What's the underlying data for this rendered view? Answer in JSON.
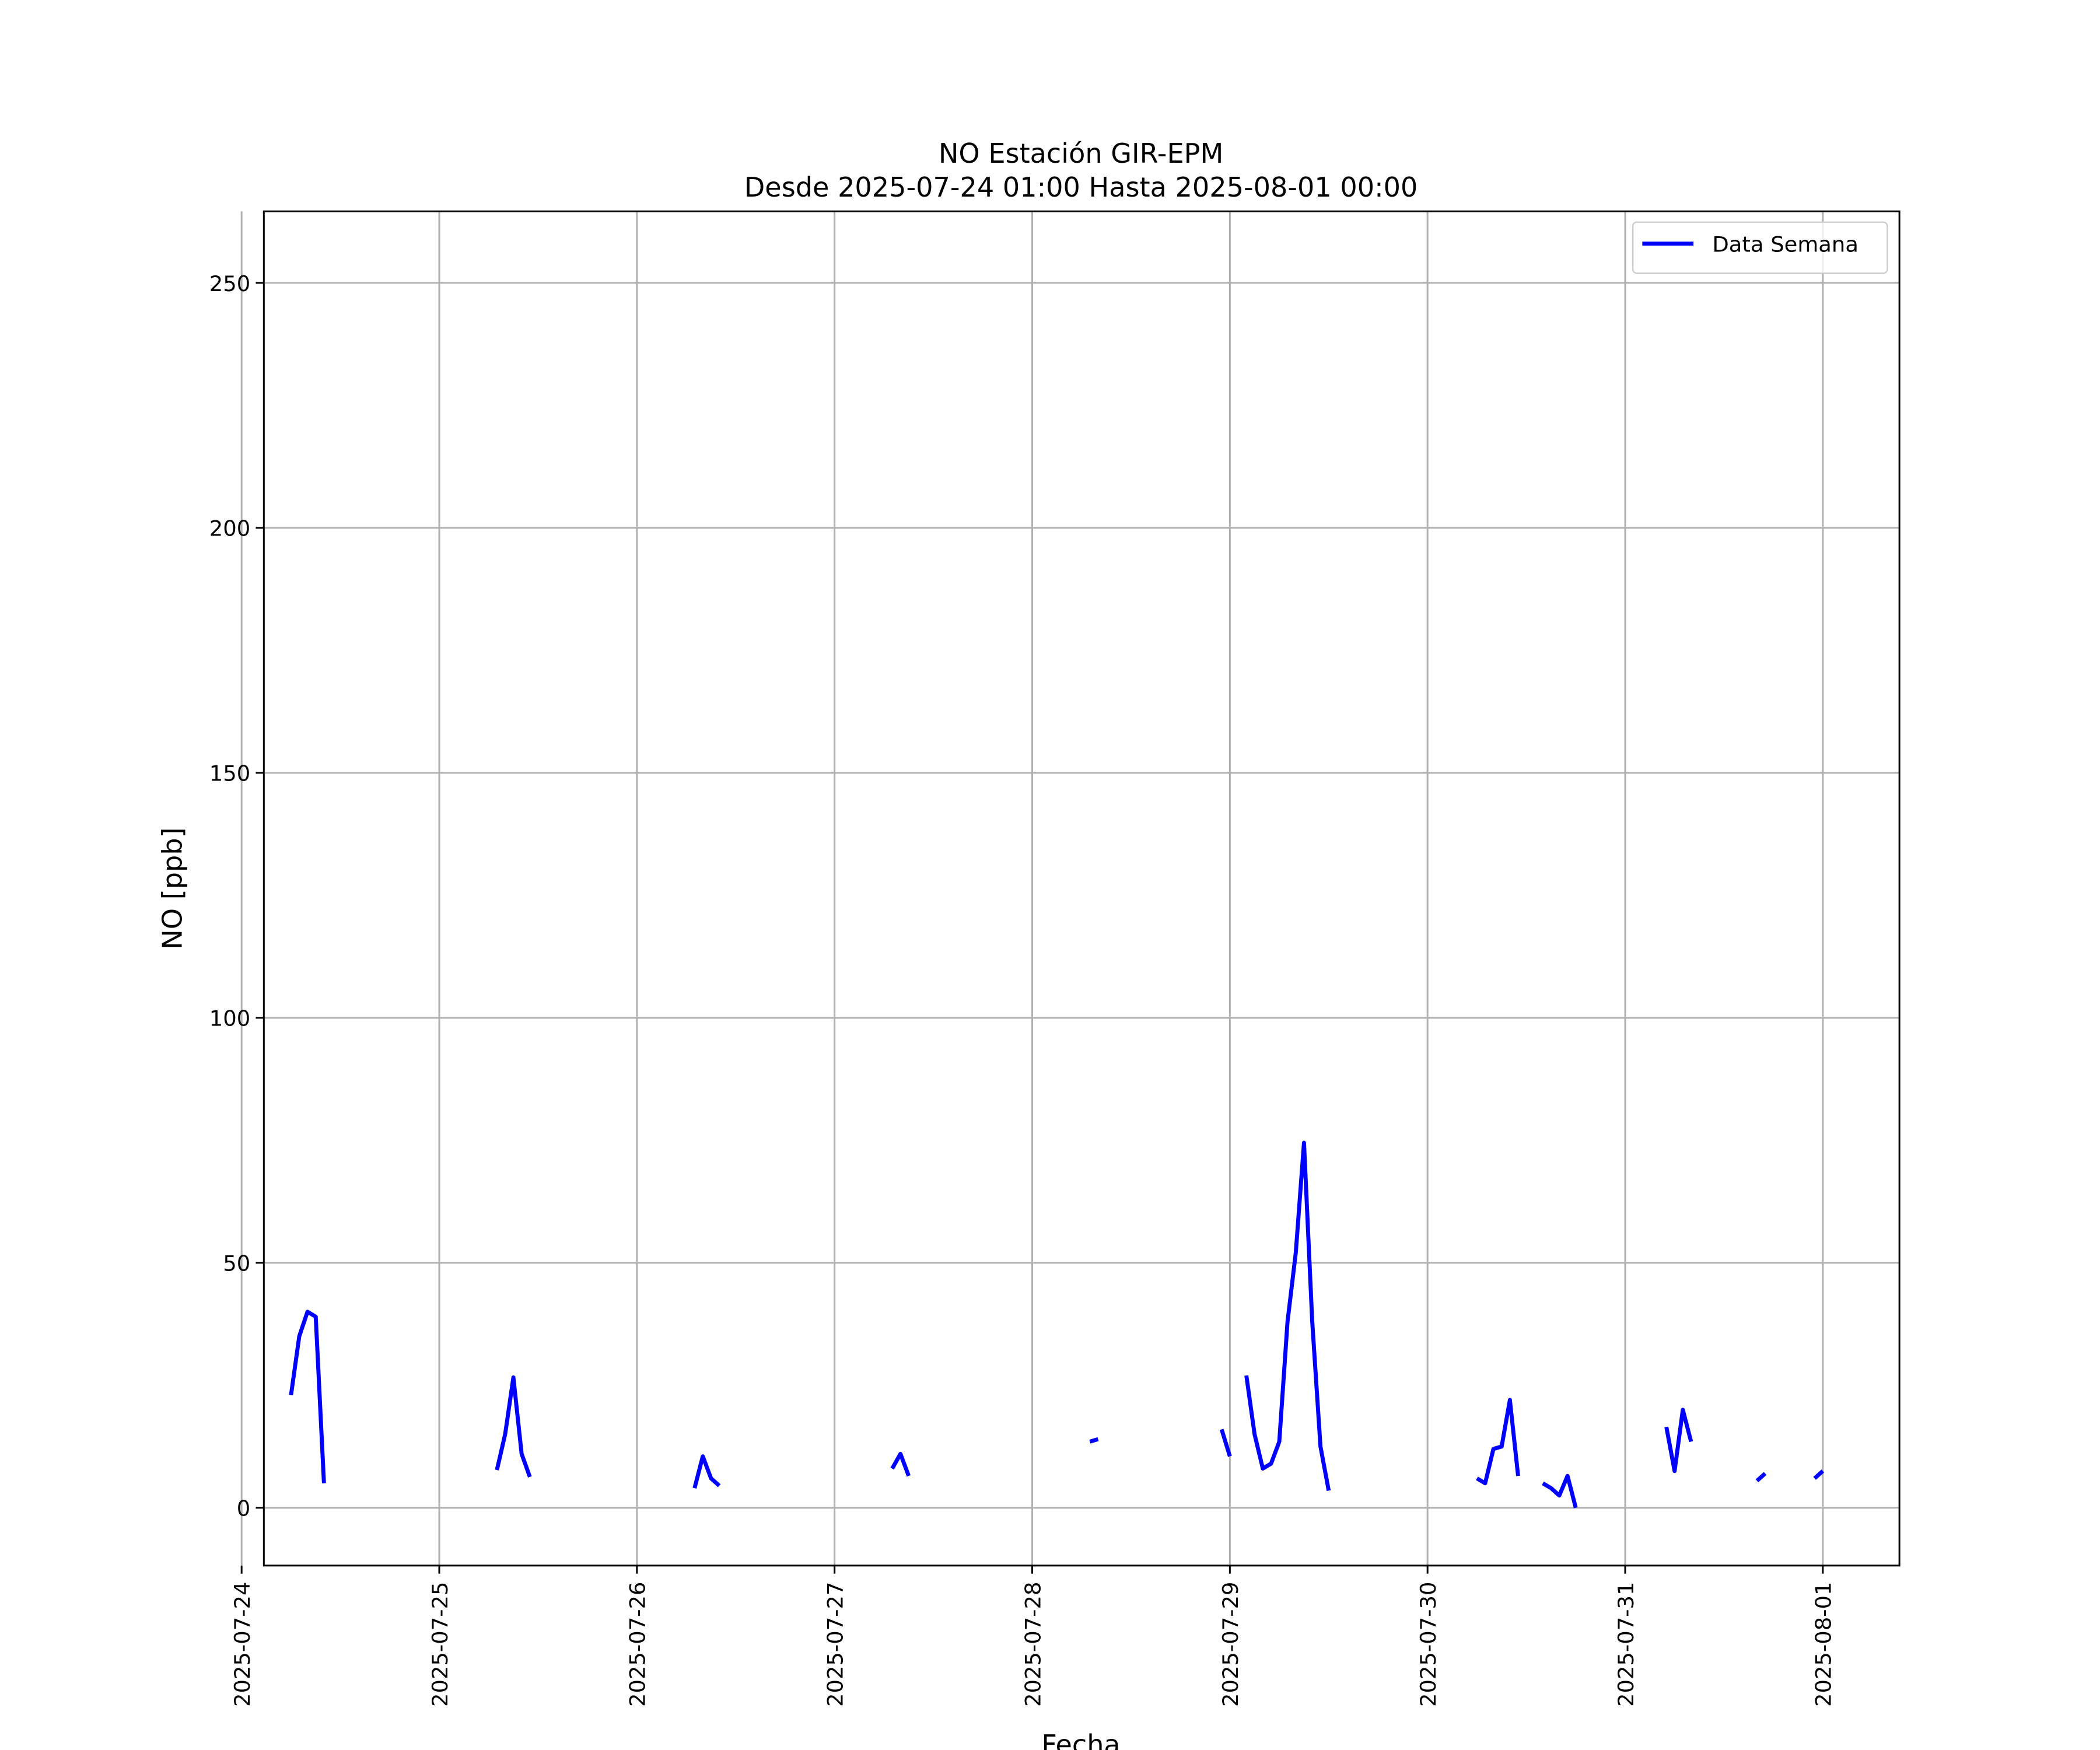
{
  "chart_data": {
    "type": "line",
    "title": "NO Estación GIR-EPM",
    "subtitle": "Desde 2025-07-24 01:00 Hasta 2025-08-01 00:00",
    "x_label": "Fecha",
    "y_label": "NO [ppb]",
    "x": [
      "2025-07-24 06:00",
      "2025-07-24 07:00",
      "2025-07-24 08:00",
      "2025-07-24 09:00",
      "2025-07-24 10:00",
      "2025-07-24 11:00",
      "2025-07-25 07:00",
      "2025-07-25 08:00",
      "2025-07-25 09:00",
      "2025-07-25 10:00",
      "2025-07-25 11:00",
      "2025-07-25 12:00",
      "2025-07-26 07:00",
      "2025-07-26 08:00",
      "2025-07-26 09:00",
      "2025-07-26 10:00",
      "2025-07-26 11:00",
      "2025-07-27 07:00",
      "2025-07-27 08:00",
      "2025-07-27 09:00",
      "2025-07-27 10:00",
      "2025-07-28 07:00",
      "2025-07-28 08:00",
      "2025-07-28 09:00",
      "2025-07-28 23:00",
      "2025-07-29 00:00",
      "2025-07-29 01:00",
      "2025-07-29 02:00",
      "2025-07-29 03:00",
      "2025-07-29 04:00",
      "2025-07-29 05:00",
      "2025-07-29 06:00",
      "2025-07-29 07:00",
      "2025-07-29 08:00",
      "2025-07-29 09:00",
      "2025-07-29 10:00",
      "2025-07-29 11:00",
      "2025-07-29 12:00",
      "2025-07-29 13:00",
      "2025-07-30 06:00",
      "2025-07-30 07:00",
      "2025-07-30 08:00",
      "2025-07-30 09:00",
      "2025-07-30 10:00",
      "2025-07-30 11:00",
      "2025-07-30 12:00",
      "2025-07-30 14:00",
      "2025-07-30 15:00",
      "2025-07-30 16:00",
      "2025-07-30 17:00",
      "2025-07-30 18:00",
      "2025-07-30 19:00",
      "2025-07-31 05:00",
      "2025-07-31 06:00",
      "2025-07-31 07:00",
      "2025-07-31 08:00",
      "2025-07-31 09:00",
      "2025-07-31 16:00",
      "2025-07-31 17:00",
      "2025-07-31 18:00",
      "2025-07-31 23:00",
      "2025-08-01 00:00"
    ],
    "series": [
      {
        "name": "Data Semana",
        "color": "#0000ff",
        "values": [
          23,
          35,
          40,
          39,
          5,
          null,
          7.7,
          15,
          26.6,
          11,
          6.3,
          null,
          4,
          10.5,
          6,
          4.5,
          null,
          8,
          11,
          6.5,
          null,
          13.5,
          14,
          null,
          16,
          10.5,
          null,
          27,
          15,
          8,
          9,
          13.5,
          38,
          52,
          74.5,
          38,
          12.5,
          3.5,
          null,
          6,
          5,
          12,
          12.5,
          22,
          6.5,
          null,
          5,
          4,
          2.5,
          6.5,
          0,
          null,
          16.5,
          7.5,
          20,
          13.5,
          null,
          5.5,
          7,
          null,
          6,
          7.5
        ]
      }
    ],
    "xlim": [
      "2025-07-24 02:42",
      "2025-08-01 09:18"
    ],
    "xticks": [
      "2025-07-24",
      "2025-07-25",
      "2025-07-26",
      "2025-07-27",
      "2025-07-28",
      "2025-07-29",
      "2025-07-30",
      "2025-07-31",
      "2025-08-01"
    ],
    "ylim": [
      -11.8,
      264.6
    ],
    "yticks": [
      0,
      50,
      100,
      150,
      200,
      250
    ],
    "grid": true,
    "legend": "upper right"
  }
}
